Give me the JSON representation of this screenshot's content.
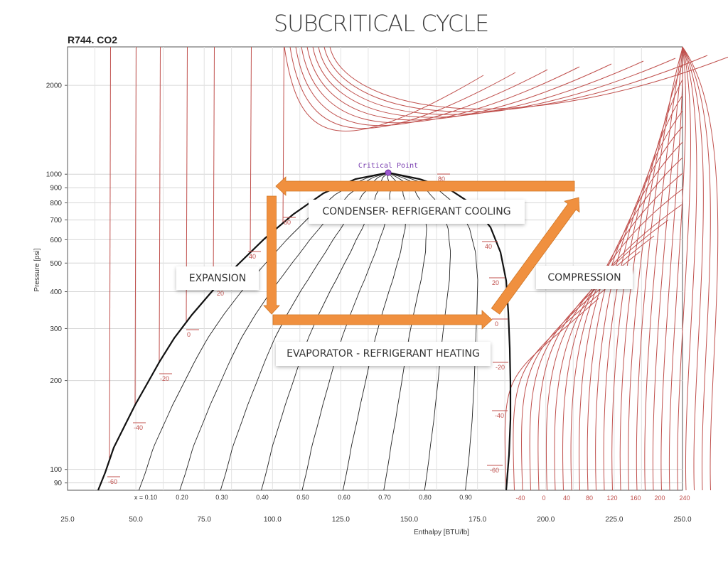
{
  "title": "SUBCRITICAL CYCLE",
  "refrigerant": "R744. CO2",
  "critical_point_label": "Critical Point",
  "process_labels": {
    "condenser": "CONDENSER- REFRIGERANT COOLING",
    "expansion": "EXPANSION",
    "compression": "COMPRESSION",
    "evaporator": "EVAPORATOR - REFRIGERANT HEATING"
  },
  "colors": {
    "isotherm": "#c0504d",
    "quality_line": "#222222",
    "cycle_arrow": "#f0903f",
    "critical_point": "#9b59d0"
  },
  "chart_data": {
    "type": "line",
    "title": "SUBCRITICAL CYCLE",
    "subtitle": "R744. CO2",
    "xlabel": "Enthalpy [BTU/lb]",
    "ylabel": "Pressure [psi]",
    "x_range": [
      25,
      250
    ],
    "y_range": [
      85,
      2700
    ],
    "y_scale": "log",
    "x_ticks": [
      "25.0",
      "50.0",
      "75.0",
      "100.0",
      "125.0",
      "150.0",
      "175.0",
      "200.0",
      "225.0",
      "250.0"
    ],
    "y_ticks": [
      "90",
      "100",
      "200",
      "300",
      "400",
      "500",
      "600",
      "700",
      "800",
      "900",
      "1000",
      "2000"
    ],
    "quality_labels": [
      "x = 0.10",
      "0.20",
      "0.30",
      "0.40",
      "0.50",
      "0.60",
      "0.70",
      "0.80",
      "0.90"
    ],
    "superheat_temperature_labels": [
      "-40",
      "0",
      "40",
      "80",
      "120",
      "160",
      "200",
      "240"
    ],
    "liquid_temperature_labels": [
      "-60",
      "-40",
      "-20",
      "0",
      "20",
      "40",
      "60",
      "80"
    ],
    "vapor_temperature_labels": [
      "40",
      "20",
      "0",
      "-20",
      "-40",
      "-60"
    ],
    "grid": true,
    "critical_point": {
      "h": 142,
      "p": 1070
    },
    "cycle": {
      "condensing_pressure": 970,
      "evaporating_pressure": 330,
      "points": [
        {
          "h": 210,
          "p": 970
        },
        {
          "h": 103,
          "p": 970
        },
        {
          "h": 103,
          "p": 330
        },
        {
          "h": 180,
          "p": 330
        }
      ]
    }
  }
}
